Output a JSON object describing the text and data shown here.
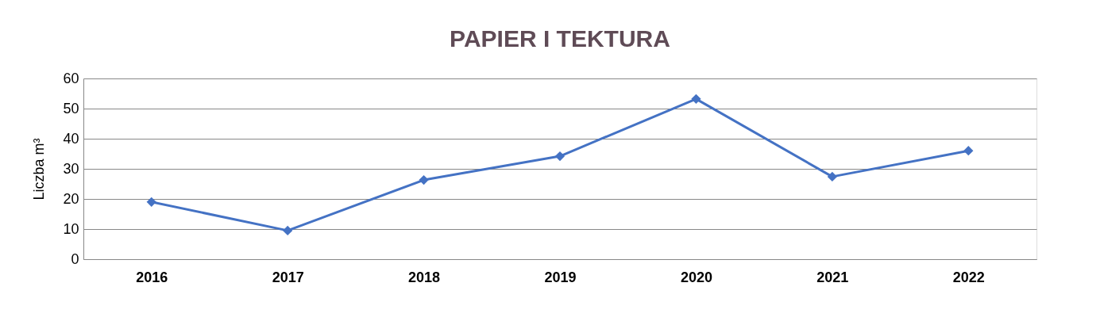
{
  "chart_data": {
    "type": "line",
    "title": "PAPIER I TEKTURA",
    "ylabel": "Liczba   m³",
    "categories": [
      "2016",
      "2017",
      "2018",
      "2019",
      "2020",
      "2021",
      "2022"
    ],
    "series": [
      {
        "color": "#4472c4",
        "values": [
          19,
          9.5,
          26.3,
          34.2,
          53.2,
          27.4,
          36
        ]
      }
    ],
    "ylim": [
      0,
      60
    ],
    "yticks": [
      0,
      10,
      20,
      30,
      40,
      50,
      60
    ],
    "grid": "y",
    "marker": "diamond",
    "line_style": "solid",
    "legend": false
  }
}
